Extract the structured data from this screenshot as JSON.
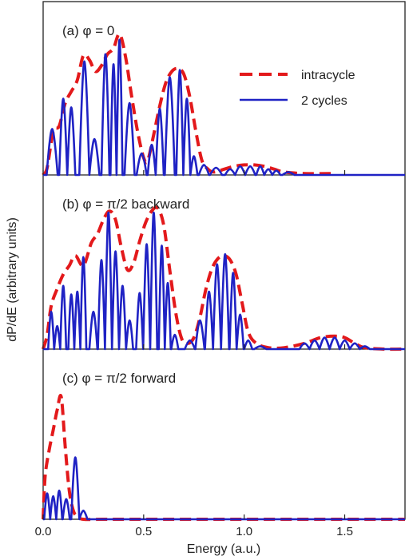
{
  "chart_data": {
    "type": "line",
    "xlabel": "Energy (a.u.)",
    "ylabel": "dP/dE (arbitrary units)",
    "xlim": [
      0.0,
      1.8
    ],
    "x_ticks": [
      "0.0",
      "0.5",
      "1.0",
      "1.5"
    ],
    "x_tick_values": [
      0,
      0.5,
      1.0,
      1.5
    ],
    "legend": {
      "position": "top-right",
      "entries": [
        "intracycle",
        "2 cycles"
      ]
    },
    "colors": {
      "intracycle": "#e3191b",
      "two_cycles": "#1f22c4"
    },
    "grid": false,
    "panels": [
      {
        "title": "(a) φ = 0",
        "series": [
          {
            "name": "intracycle",
            "style": "dashed",
            "points": [
              [
                0,
                0.0
              ],
              [
                0.02,
                0.05
              ],
              [
                0.05,
                0.3
              ],
              [
                0.08,
                0.34
              ],
              [
                0.11,
                0.5
              ],
              [
                0.14,
                0.58
              ],
              [
                0.17,
                0.66
              ],
              [
                0.2,
                0.83
              ],
              [
                0.23,
                0.8
              ],
              [
                0.26,
                0.72
              ],
              [
                0.29,
                0.76
              ],
              [
                0.32,
                0.84
              ],
              [
                0.35,
                0.88
              ],
              [
                0.38,
                0.98
              ],
              [
                0.41,
                0.82
              ],
              [
                0.44,
                0.55
              ],
              [
                0.47,
                0.3
              ],
              [
                0.5,
                0.12
              ],
              [
                0.52,
                0.1
              ],
              [
                0.55,
                0.28
              ],
              [
                0.58,
                0.48
              ],
              [
                0.61,
                0.64
              ],
              [
                0.64,
                0.72
              ],
              [
                0.67,
                0.74
              ],
              [
                0.7,
                0.7
              ],
              [
                0.73,
                0.54
              ],
              [
                0.76,
                0.3
              ],
              [
                0.79,
                0.1
              ],
              [
                0.82,
                0.04
              ],
              [
                0.85,
                0.02
              ],
              [
                0.9,
                0.04
              ],
              [
                0.95,
                0.06
              ],
              [
                1.0,
                0.07
              ],
              [
                1.05,
                0.07
              ],
              [
                1.1,
                0.06
              ],
              [
                1.15,
                0.04
              ],
              [
                1.2,
                0.02
              ],
              [
                1.3,
                0.01
              ],
              [
                1.45,
                0.01
              ]
            ]
          },
          {
            "name": "2 cycles",
            "style": "solid",
            "peaks": [
              [
                0.045,
                0.32
              ],
              [
                0.1,
                0.53
              ],
              [
                0.14,
                0.47
              ],
              [
                0.205,
                0.79
              ],
              [
                0.255,
                0.25
              ],
              [
                0.31,
                0.84
              ],
              [
                0.35,
                0.77
              ],
              [
                0.38,
                0.94
              ],
              [
                0.43,
                0.5
              ],
              [
                0.49,
                0.15
              ],
              [
                0.54,
                0.21
              ],
              [
                0.58,
                0.46
              ],
              [
                0.63,
                0.68
              ],
              [
                0.68,
                0.73
              ],
              [
                0.715,
                0.53
              ],
              [
                0.75,
                0.13
              ],
              [
                0.8,
                0.07
              ],
              [
                0.86,
                0.05
              ],
              [
                0.93,
                0.04
              ],
              [
                0.98,
                0.06
              ],
              [
                1.03,
                0.06
              ],
              [
                1.08,
                0.06
              ],
              [
                1.12,
                0.04
              ],
              [
                1.16,
                0.03
              ],
              [
                1.22,
                0.02
              ]
            ]
          }
        ]
      },
      {
        "title": "(b) φ = π/2 backward",
        "series": [
          {
            "name": "intracycle",
            "style": "dashed",
            "points": [
              [
                0,
                0.0
              ],
              [
                0.02,
                0.1
              ],
              [
                0.04,
                0.3
              ],
              [
                0.07,
                0.42
              ],
              [
                0.1,
                0.52
              ],
              [
                0.13,
                0.58
              ],
              [
                0.16,
                0.65
              ],
              [
                0.2,
                0.58
              ],
              [
                0.24,
                0.74
              ],
              [
                0.27,
                0.8
              ],
              [
                0.3,
                0.9
              ],
              [
                0.33,
                0.96
              ],
              [
                0.36,
                0.9
              ],
              [
                0.39,
                0.7
              ],
              [
                0.42,
                0.55
              ],
              [
                0.45,
                0.6
              ],
              [
                0.48,
                0.75
              ],
              [
                0.51,
                0.88
              ],
              [
                0.54,
                0.96
              ],
              [
                0.57,
                0.98
              ],
              [
                0.6,
                0.86
              ],
              [
                0.63,
                0.55
              ],
              [
                0.66,
                0.25
              ],
              [
                0.69,
                0.07
              ],
              [
                0.72,
                0.04
              ],
              [
                0.75,
                0.08
              ],
              [
                0.78,
                0.22
              ],
              [
                0.81,
                0.42
              ],
              [
                0.84,
                0.56
              ],
              [
                0.87,
                0.63
              ],
              [
                0.9,
                0.65
              ],
              [
                0.93,
                0.62
              ],
              [
                0.96,
                0.52
              ],
              [
                0.99,
                0.32
              ],
              [
                1.02,
                0.12
              ],
              [
                1.06,
                0.04
              ],
              [
                1.12,
                0.01
              ],
              [
                1.2,
                0.01
              ],
              [
                1.3,
                0.04
              ],
              [
                1.38,
                0.08
              ],
              [
                1.45,
                0.09
              ],
              [
                1.5,
                0.08
              ],
              [
                1.55,
                0.04
              ],
              [
                1.6,
                0.01
              ],
              [
                1.7,
                0.0
              ],
              [
                1.8,
                0.0
              ]
            ]
          },
          {
            "name": "2 cycles",
            "style": "solid",
            "peaks": [
              [
                0.04,
                0.26
              ],
              [
                0.07,
                0.16
              ],
              [
                0.1,
                0.44
              ],
              [
                0.14,
                0.38
              ],
              [
                0.17,
                0.4
              ],
              [
                0.2,
                0.64
              ],
              [
                0.25,
                0.26
              ],
              [
                0.29,
                0.62
              ],
              [
                0.325,
                0.95
              ],
              [
                0.36,
                0.68
              ],
              [
                0.395,
                0.44
              ],
              [
                0.43,
                0.2
              ],
              [
                0.48,
                0.39
              ],
              [
                0.515,
                0.73
              ],
              [
                0.55,
                0.95
              ],
              [
                0.59,
                0.72
              ],
              [
                0.62,
                0.46
              ],
              [
                0.655,
                0.1
              ],
              [
                0.73,
                0.06
              ],
              [
                0.78,
                0.2
              ],
              [
                0.825,
                0.4
              ],
              [
                0.865,
                0.59
              ],
              [
                0.905,
                0.66
              ],
              [
                0.945,
                0.53
              ],
              [
                0.98,
                0.24
              ],
              [
                1.02,
                0.06
              ],
              [
                1.08,
                0.02
              ],
              [
                1.3,
                0.04
              ],
              [
                1.35,
                0.06
              ],
              [
                1.4,
                0.08
              ],
              [
                1.45,
                0.08
              ],
              [
                1.5,
                0.06
              ],
              [
                1.55,
                0.04
              ],
              [
                1.6,
                0.02
              ]
            ]
          }
        ]
      },
      {
        "title": "(c) φ = π/2 forward",
        "series": [
          {
            "name": "intracycle",
            "style": "dashed",
            "points": [
              [
                0,
                0.0
              ],
              [
                0.01,
                0.3
              ],
              [
                0.03,
                0.48
              ],
              [
                0.05,
                0.62
              ],
              [
                0.07,
                0.76
              ],
              [
                0.09,
                0.85
              ],
              [
                0.11,
                0.5
              ],
              [
                0.13,
                0.2
              ],
              [
                0.15,
                0.06
              ],
              [
                0.17,
                0.02
              ],
              [
                0.2,
                0.0
              ],
              [
                0.3,
                0.0
              ],
              [
                0.5,
                0.0
              ],
              [
                1.0,
                0.0
              ],
              [
                1.5,
                0.0
              ],
              [
                1.8,
                0.0
              ]
            ]
          },
          {
            "name": "2 cycles",
            "style": "solid",
            "peaks": [
              [
                0.02,
                0.18
              ],
              [
                0.05,
                0.16
              ],
              [
                0.08,
                0.2
              ],
              [
                0.115,
                0.14
              ],
              [
                0.16,
                0.43
              ],
              [
                0.2,
                0.06
              ]
            ]
          }
        ]
      }
    ]
  }
}
